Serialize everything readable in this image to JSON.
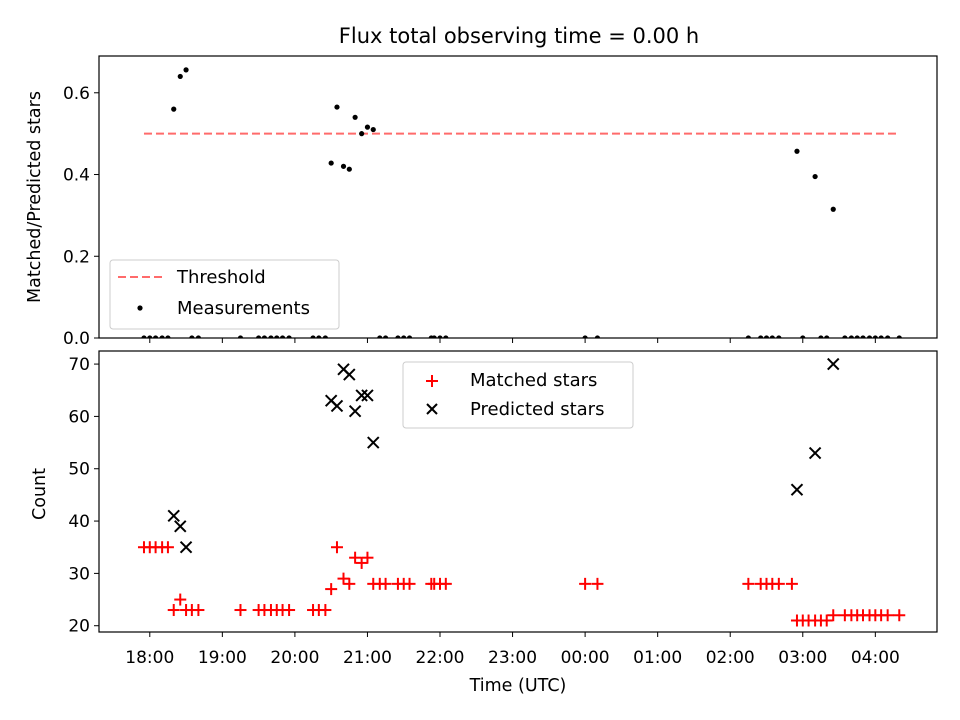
{
  "figure_title": "Flux total observing time = 0.00 h",
  "chart_data": [
    {
      "type": "scatter",
      "ylabel": "Matched/Predicted stars",
      "ylim": [
        0,
        0.69
      ],
      "yticks": [
        0.0,
        0.2,
        0.4,
        0.6
      ],
      "ytick_labels": [
        "0.0",
        "0.2",
        "0.4",
        "0.6"
      ],
      "grid": false,
      "legend_position": "lower-left",
      "threshold": {
        "name": "Threshold",
        "value": 0.5,
        "x_range": [
          17.92,
          28.33
        ],
        "color": "#ff6b6b",
        "style": "dashed"
      },
      "measurements": {
        "name": "Measurements",
        "color": "#000000",
        "points": [
          [
            17.92,
            0
          ],
          [
            18.0,
            0
          ],
          [
            18.08,
            0
          ],
          [
            18.17,
            0
          ],
          [
            18.25,
            0
          ],
          [
            18.42,
            0.64
          ],
          [
            18.5,
            0.656
          ],
          [
            18.58,
            0
          ],
          [
            18.67,
            0
          ],
          [
            18.33,
            0.56
          ],
          [
            19.25,
            0
          ],
          [
            19.5,
            0
          ],
          [
            19.58,
            0
          ],
          [
            19.67,
            0
          ],
          [
            19.75,
            0
          ],
          [
            19.83,
            0
          ],
          [
            19.92,
            0
          ],
          [
            20.25,
            0
          ],
          [
            20.33,
            0
          ],
          [
            20.42,
            0
          ],
          [
            20.5,
            0.428
          ],
          [
            20.58,
            0.565
          ],
          [
            20.67,
            0.42
          ],
          [
            20.75,
            0.413
          ],
          [
            20.83,
            0.54
          ],
          [
            20.92,
            0.5
          ],
          [
            21.0,
            0.516
          ],
          [
            21.08,
            0.51
          ],
          [
            21.17,
            0
          ],
          [
            21.25,
            0
          ],
          [
            21.42,
            0
          ],
          [
            21.5,
            0
          ],
          [
            21.58,
            0
          ],
          [
            21.88,
            0
          ],
          [
            21.92,
            0
          ],
          [
            22.0,
            0
          ],
          [
            22.08,
            0
          ],
          [
            24.0,
            0
          ],
          [
            24.17,
            0
          ],
          [
            26.25,
            0
          ],
          [
            26.42,
            0
          ],
          [
            26.5,
            0
          ],
          [
            26.58,
            0
          ],
          [
            26.67,
            0
          ],
          [
            26.92,
            0.457
          ],
          [
            27.0,
            0
          ],
          [
            27.17,
            0.395
          ],
          [
            27.25,
            0
          ],
          [
            27.33,
            0
          ],
          [
            27.42,
            0.315
          ],
          [
            27.58,
            0
          ],
          [
            27.67,
            0
          ],
          [
            27.75,
            0
          ],
          [
            27.83,
            0
          ],
          [
            27.92,
            0
          ],
          [
            28.0,
            0
          ],
          [
            28.08,
            0
          ],
          [
            28.17,
            0
          ],
          [
            28.33,
            0
          ]
        ]
      }
    },
    {
      "type": "scatter",
      "xlabel": "Time (UTC)",
      "ylabel": "Count",
      "xlim": [
        17.3,
        28.85
      ],
      "ylim": [
        18.8,
        72.5
      ],
      "xticks": [
        18,
        19,
        20,
        21,
        22,
        23,
        24,
        25,
        26,
        27,
        28
      ],
      "xtick_labels": [
        "18:00",
        "19:00",
        "20:00",
        "21:00",
        "22:00",
        "23:00",
        "00:00",
        "01:00",
        "02:00",
        "03:00",
        "04:00"
      ],
      "yticks": [
        20,
        30,
        40,
        50,
        60,
        70
      ],
      "ytick_labels": [
        "20",
        "30",
        "40",
        "50",
        "60",
        "70"
      ],
      "grid": false,
      "legend_position": "upper-center",
      "series": [
        {
          "name": "Matched stars",
          "marker": "plus",
          "color": "#ff0000",
          "points": [
            [
              17.92,
              35
            ],
            [
              18.0,
              35
            ],
            [
              18.08,
              35
            ],
            [
              18.17,
              35
            ],
            [
              18.25,
              35
            ],
            [
              18.33,
              23
            ],
            [
              18.42,
              25
            ],
            [
              18.5,
              23
            ],
            [
              18.58,
              23
            ],
            [
              18.67,
              23
            ],
            [
              19.25,
              23
            ],
            [
              19.5,
              23
            ],
            [
              19.58,
              23
            ],
            [
              19.67,
              23
            ],
            [
              19.75,
              23
            ],
            [
              19.83,
              23
            ],
            [
              19.92,
              23
            ],
            [
              20.25,
              23
            ],
            [
              20.33,
              23
            ],
            [
              20.42,
              23
            ],
            [
              20.5,
              27
            ],
            [
              20.58,
              35
            ],
            [
              20.67,
              29
            ],
            [
              20.75,
              28
            ],
            [
              20.83,
              33
            ],
            [
              20.92,
              32
            ],
            [
              21.0,
              33
            ],
            [
              21.08,
              28
            ],
            [
              21.17,
              28
            ],
            [
              21.25,
              28
            ],
            [
              21.42,
              28
            ],
            [
              21.5,
              28
            ],
            [
              21.58,
              28
            ],
            [
              21.88,
              28
            ],
            [
              21.92,
              28
            ],
            [
              22.0,
              28
            ],
            [
              22.08,
              28
            ],
            [
              24.0,
              28
            ],
            [
              24.17,
              28
            ],
            [
              26.25,
              28
            ],
            [
              26.42,
              28
            ],
            [
              26.5,
              28
            ],
            [
              26.58,
              28
            ],
            [
              26.67,
              28
            ],
            [
              26.92,
              21
            ],
            [
              27.0,
              21
            ],
            [
              27.08,
              21
            ],
            [
              27.17,
              21
            ],
            [
              27.25,
              21
            ],
            [
              27.33,
              21
            ],
            [
              27.42,
              22
            ],
            [
              27.58,
              22
            ],
            [
              27.67,
              22
            ],
            [
              27.75,
              22
            ],
            [
              27.83,
              22
            ],
            [
              27.92,
              22
            ],
            [
              28.0,
              22
            ],
            [
              28.08,
              22
            ],
            [
              28.17,
              22
            ],
            [
              28.33,
              22
            ],
            [
              26.85,
              28
            ]
          ]
        },
        {
          "name": "Predicted stars",
          "marker": "x",
          "color": "#000000",
          "points": [
            [
              18.33,
              41
            ],
            [
              18.42,
              39
            ],
            [
              18.5,
              35
            ],
            [
              20.5,
              63
            ],
            [
              20.58,
              62
            ],
            [
              20.67,
              69
            ],
            [
              20.75,
              68
            ],
            [
              20.83,
              61
            ],
            [
              20.92,
              64
            ],
            [
              21.0,
              64
            ],
            [
              21.08,
              55
            ],
            [
              26.92,
              46
            ],
            [
              27.17,
              53
            ],
            [
              27.42,
              70
            ]
          ]
        }
      ]
    }
  ]
}
